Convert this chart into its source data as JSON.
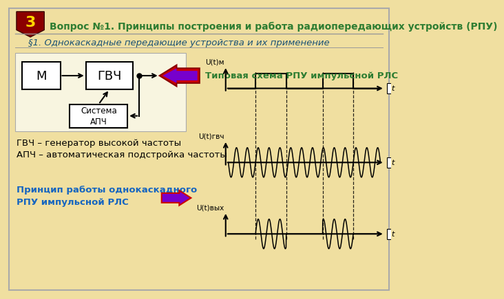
{
  "bg_color": "#f0dfa0",
  "title_text": "Вопрос №1. Принципы построения и работа радиопередающих устройств (РПУ)",
  "title_color": "#2e7d32",
  "subtitle_text": "§1. Однокаскадные передающие устройства и их применение",
  "subtitle_color": "#1a5276",
  "badge_number": "3",
  "badge_bg": "#8b0000",
  "badge_fg": "#ffd700",
  "box_color": "#ffffff",
  "box_edge": "#000000",
  "arrow_color": "#000000",
  "annotation1": "Типовая схема РПУ импульсной РЛС",
  "annotation1_color": "#2e7d32",
  "label_m": "М",
  "label_gvc": "ГВЧ",
  "label_apc": "Система\nАПЧ",
  "label_um": "U(t)м",
  "label_ugvc": "U(t)гвч",
  "label_uvyx": "U(t)вых",
  "text_gvc_line1": "ГВЧ – генератор высокой частоты",
  "text_gvc_line2": "АПЧ – автоматическая подстройка частоты",
  "text_principle": "Принцип работы однокаскадного\nРПУ импульсной РЛС",
  "text_black": "#000000",
  "text_principle_color": "#1565c0",
  "sep_color": "#999999",
  "border_color": "#aaaaaa"
}
